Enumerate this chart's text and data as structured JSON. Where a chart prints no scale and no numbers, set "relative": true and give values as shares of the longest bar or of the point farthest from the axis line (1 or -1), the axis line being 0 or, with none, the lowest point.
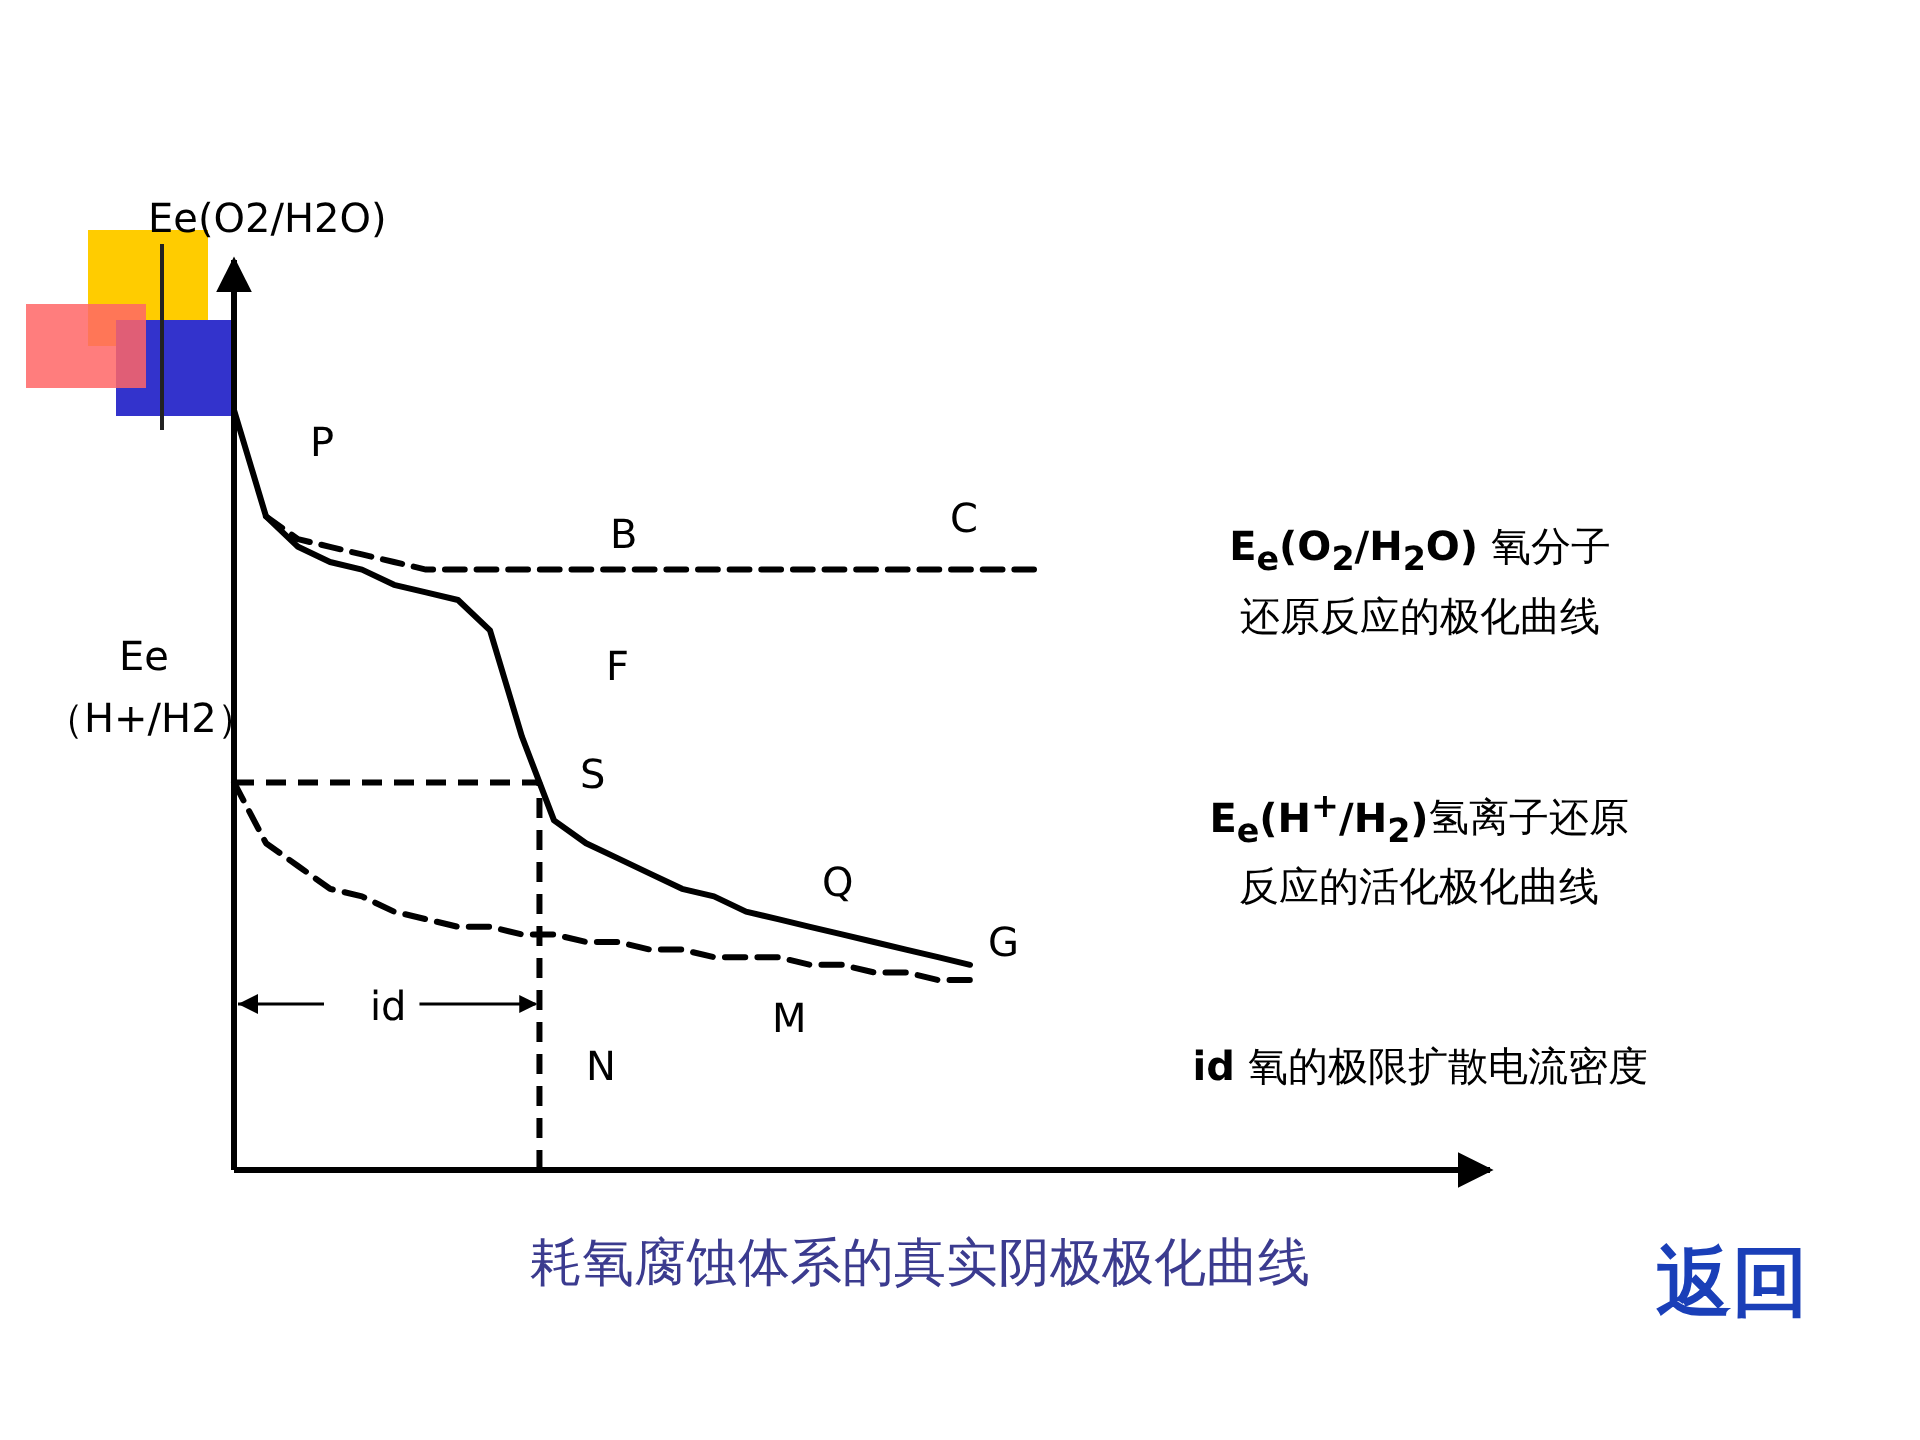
{
  "chart_data": {
    "type": "line",
    "relative": true,
    "title": "耗氧腐蚀体系的真实阴极极化曲线",
    "ylabel": "Ee(O2/H2O)",
    "categories": [
      null,
      null,
      null,
      null,
      null,
      null,
      null,
      null,
      null,
      null,
      null,
      null,
      null,
      null,
      null,
      null,
      null,
      null,
      null,
      null,
      null,
      null,
      null,
      null,
      null,
      null
    ],
    "series": [
      {
        "color": "#000000",
        "line_style": "solid",
        "values": [
          1.0,
          0.86,
          0.82,
          0.8,
          0.79,
          0.77,
          0.76,
          0.75,
          0.71,
          0.57,
          0.46,
          0.43,
          0.41,
          0.39,
          0.37,
          0.36,
          0.34,
          0.33,
          0.32,
          0.31,
          0.3,
          0.29,
          0.28,
          0.27,
          null,
          null
        ]
      },
      {
        "color": "#000000",
        "line_style": "dashed",
        "values": [
          null,
          0.86,
          0.83,
          0.82,
          0.81,
          0.8,
          0.79,
          0.79,
          0.79,
          0.79,
          0.79,
          0.79,
          0.79,
          0.79,
          0.79,
          0.79,
          0.79,
          0.79,
          0.79,
          0.79,
          0.79,
          0.79,
          0.79,
          0.79,
          0.79,
          0.79
        ]
      },
      {
        "color": "#000000",
        "line_style": "dashed",
        "values": [
          0.51,
          0.43,
          0.4,
          0.37,
          0.36,
          0.34,
          0.33,
          0.32,
          0.32,
          0.31,
          0.31,
          0.3,
          0.3,
          0.29,
          0.29,
          0.28,
          0.28,
          0.28,
          0.27,
          0.27,
          0.26,
          0.26,
          0.25,
          0.25,
          null,
          null
        ]
      }
    ],
    "ref_lines": [
      {
        "axis": "y",
        "value": 0.51,
        "label": "Ee （H+/H2）",
        "line_style": "dashed"
      }
    ],
    "annotations": [
      "P",
      "B",
      "C",
      "F",
      "S",
      "Q",
      "G",
      "M",
      "N",
      "id",
      "**E$_{e}$(O$_{2}$/H$_{2}$O)** 氧分子还原反应的极化曲线",
      "**E$_{e}$(H$^{+}$/H$_{2}$)**氢离子还原反应的活化极化曲线",
      "**id** 氧的极限扩散电流密度",
      "返回"
    ],
    "grid": false,
    "marker": "none"
  }
}
